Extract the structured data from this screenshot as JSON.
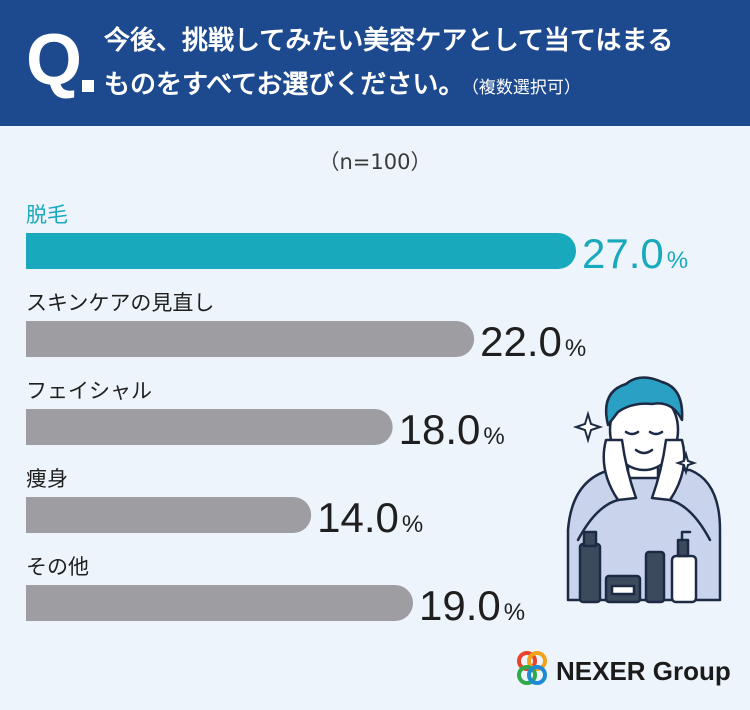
{
  "question": {
    "mark": "Q",
    "line1": "今後、挑戦してみたい美容ケアとして当てはまる",
    "line2": "ものをすべてお選びください。",
    "note": "（複数選択可）"
  },
  "sample_size": "（n=100）",
  "logo": {
    "text": "NEXER Group"
  },
  "colors": {
    "header_bg": "#1d4a8e",
    "highlight": "#18a9bd",
    "bar_gray": "#9e9ea2",
    "text_dark": "#1f1f1f",
    "background": "#eef4fb"
  },
  "chart_data": {
    "type": "bar",
    "orientation": "horizontal",
    "unit": "%",
    "categories": [
      "脱毛",
      "スキンケアの見直し",
      "フェイシャル",
      "痩身",
      "その他"
    ],
    "values": [
      27.0,
      22.0,
      18.0,
      14.0,
      19.0
    ],
    "value_labels": [
      "27.0",
      "22.0",
      "18.0",
      "14.0",
      "19.0"
    ],
    "highlight_index": 0,
    "xlim": [
      0,
      27.0
    ]
  }
}
